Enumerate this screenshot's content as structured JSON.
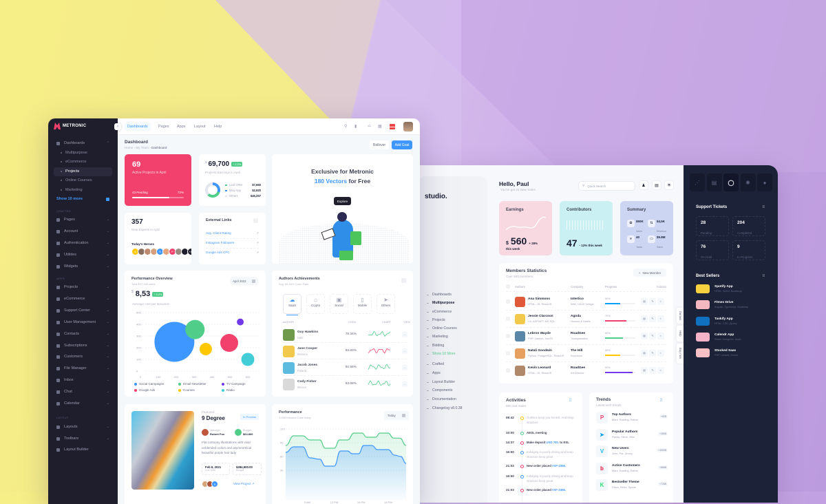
{
  "colors": {
    "primary": "#3e97ff",
    "danger": "#f1416c",
    "success": "#50cd89",
    "purple": "#7239ea",
    "warning": "#ffc700",
    "info": "#43ced7",
    "dark_sidebar": "#1e1e2d"
  },
  "metronic": {
    "logo": "METRONIC",
    "sidebar": [
      {
        "type": "item",
        "label": "Dashboards",
        "icon": "grid-icon",
        "open": true
      },
      {
        "type": "sub",
        "label": "Multipurpose"
      },
      {
        "type": "sub",
        "label": "eCommerce"
      },
      {
        "type": "sub",
        "label": "Projects",
        "active": true
      },
      {
        "type": "sub",
        "label": "Online Courses"
      },
      {
        "type": "sub",
        "label": "Marketing"
      },
      {
        "type": "more",
        "label": "Show 10 more"
      },
      {
        "type": "section",
        "label": "CRAFTED"
      },
      {
        "type": "item",
        "label": "Pages",
        "icon": "file-icon"
      },
      {
        "type": "item",
        "label": "Account",
        "icon": "user-icon"
      },
      {
        "type": "item",
        "label": "Authentication",
        "icon": "lock-icon"
      },
      {
        "type": "item",
        "label": "Utilities",
        "icon": "tools-icon"
      },
      {
        "type": "item",
        "label": "Widgets",
        "icon": "widgets-icon"
      },
      {
        "type": "section",
        "label": "APPS"
      },
      {
        "type": "item",
        "label": "Projects",
        "icon": "folder-icon"
      },
      {
        "type": "item",
        "label": "eCommerce",
        "icon": "cart-icon"
      },
      {
        "type": "item",
        "label": "Support Center",
        "icon": "lifebuoy-icon"
      },
      {
        "type": "item",
        "label": "User Management",
        "icon": "users-icon"
      },
      {
        "type": "item",
        "label": "Contacts",
        "icon": "contacts-icon"
      },
      {
        "type": "item",
        "label": "Subscriptions",
        "icon": "subscription-icon"
      },
      {
        "type": "item",
        "label": "Customers",
        "icon": "customer-icon"
      },
      {
        "type": "item",
        "label": "File Manager",
        "icon": "file-manager-icon"
      },
      {
        "type": "item",
        "label": "Inbox",
        "icon": "inbox-icon"
      },
      {
        "type": "item",
        "label": "Chat",
        "icon": "chat-icon"
      },
      {
        "type": "item",
        "label": "Calendar",
        "icon": "calendar-icon"
      },
      {
        "type": "section",
        "label": "LAYOUT"
      },
      {
        "type": "item",
        "label": "Layouts",
        "icon": "layout-icon"
      },
      {
        "type": "item",
        "label": "Toolbars",
        "icon": "toolbar-icon"
      },
      {
        "type": "item",
        "label": "Layout Builder",
        "icon": "builder-icon",
        "nochev": true
      }
    ],
    "topnav": [
      "Dashboards",
      "Pages",
      "Apps",
      "Layout",
      "Help"
    ],
    "header_icons": [
      "search-icon",
      "chart-icon",
      "basket-icon",
      "apps-icon",
      "us-flag-icon"
    ],
    "page": {
      "title": "Dashboard",
      "breadcrumb": [
        "Home",
        "My Team",
        "Dashboard"
      ],
      "rollover": "Rollover",
      "add_goal": "Add Goal"
    },
    "projects_card": {
      "value": "69",
      "label": "Active Projects in April",
      "pending": "43 Pending",
      "percent_label": "72%",
      "progress": 72
    },
    "earnings_card": {
      "currency": "$",
      "value": "69,700",
      "badge": "↑ 2.2%",
      "label": "Projects Earnings in April",
      "legend": [
        {
          "name": "Leaf CRM",
          "value": "$7,660",
          "color": "#50cd89"
        },
        {
          "name": "Mivy App",
          "value": "$2,820",
          "color": "#3e97ff"
        },
        {
          "name": "Others",
          "value": "$45,257",
          "color": "#e4e6ef"
        }
      ]
    },
    "experts_card": {
      "value": "357",
      "label": "New Experts in April",
      "heroes_label": "Today's Heroes",
      "heroes": [
        "A",
        "",
        "",
        "",
        "S",
        "",
        "P",
        "",
        ""
      ],
      "more": "+42"
    },
    "links_card": {
      "title": "External Links",
      "links": [
        "Avg. Client Rating",
        "Instagram Followers",
        "Google Ads CPC"
      ]
    },
    "banner": {
      "line1": "Exclusive for Metronic",
      "highlight": "180 Vectors",
      "line2_rest": "for Free",
      "button": "Explore"
    },
    "perf_overview": {
      "title": "Performance Overview",
      "subtitle": "Total $37,345 sales",
      "currency": "$",
      "value": "8,53",
      "badge": "↑ 3.2%",
      "label": "Average cost per iteraction",
      "period": "April 2022"
    },
    "authors": {
      "title": "Authors Achievements",
      "subtitle": "Avg. 69.34% Conv. Rate",
      "tabs": [
        {
          "label": "SaaS",
          "icon": "cloud-icon",
          "active": true
        },
        {
          "label": "Crypto",
          "icon": "bank-icon"
        },
        {
          "label": "Social",
          "icon": "social-icon"
        },
        {
          "label": "Mobile",
          "icon": "mobile-icon"
        },
        {
          "label": "Others",
          "icon": "paper-plane-icon"
        }
      ],
      "columns": [
        "AUTHOR",
        "CONV.",
        "CHART",
        "VIEW"
      ],
      "rows": [
        {
          "name": "Guy Hawkins",
          "country": "Haiti",
          "conv": "78.34%",
          "trend": "#50cd89"
        },
        {
          "name": "Jane Cooper",
          "country": "Monaco",
          "conv": "63.83%",
          "trend": "#f1416c"
        },
        {
          "name": "Jacob Jones",
          "country": "Poland",
          "conv": "92.56%",
          "trend": "#50cd89"
        },
        {
          "name": "Cody Fisher",
          "country": "Mexico",
          "conv": "63.08%",
          "trend": "#50cd89"
        }
      ]
    },
    "featured": {
      "tag": "Featured",
      "title": "9 Degree",
      "status": "In Process",
      "manager_label": "Manager",
      "manager": "Robert Fox",
      "budget_label": "Budget",
      "budget": "$64.800",
      "description": "Flat cartoony illustrations with vivid unblended colors and asymmetrical beautiful purple hair lady",
      "due": "Feb 6, 2021",
      "due_label": "Due Date",
      "total": "$284,900.00",
      "total_label": "Budget",
      "link": "View Project",
      "avatar_more": "S"
    },
    "performance": {
      "title": "Performance",
      "subtitle": "1,046 Inbound Calls today",
      "period": "Today"
    }
  },
  "chart_data": [
    {
      "type": "scatter",
      "title": "Performance Overview",
      "xlim": [
        0,
        600
      ],
      "ylim": [
        0,
        500
      ],
      "xticks": [
        "0",
        "100",
        "200",
        "300",
        "400",
        "500",
        "600"
      ],
      "yticks": [
        "0",
        "100",
        "200",
        "300",
        "400",
        "500"
      ],
      "grid": true,
      "legend": "bottom",
      "series": [
        {
          "name": "Social Campaigns",
          "x": 190,
          "y": 250,
          "z": 58,
          "color": "#3e97ff"
        },
        {
          "name": "Email Newsletter",
          "x": 305,
          "y": 355,
          "z": 28,
          "color": "#50cd89"
        },
        {
          "name": "TV Campaign",
          "x": 558,
          "y": 420,
          "z": 10,
          "color": "#7239ea"
        },
        {
          "name": "Google Ads",
          "x": 496,
          "y": 241,
          "z": 26,
          "color": "#f1416c"
        },
        {
          "name": "Courses",
          "x": 365,
          "y": 188,
          "z": 18,
          "color": "#ffc700"
        },
        {
          "name": "Radio",
          "x": 600,
          "y": 100,
          "z": 19,
          "color": "#43ced7"
        }
      ]
    },
    {
      "type": "area",
      "title": "Performance",
      "ylim": [
        0,
        120
      ],
      "yticks": [
        "30",
        "60",
        "90",
        "120"
      ],
      "xticks": [
        {
          "x": 9,
          "label": "9 AM"
        },
        {
          "x": 12,
          "label": "12 PM"
        },
        {
          "x": 15,
          "label": "15 PM"
        },
        {
          "x": 18,
          "label": "18 PM"
        }
      ],
      "grid": true,
      "series": [
        {
          "color": "#50cd89",
          "points": [
            [
              6.6,
              84
            ],
            [
              7.5,
              105
            ],
            [
              8.5,
              105
            ],
            [
              9.3,
              96
            ],
            [
              10.4,
              96
            ],
            [
              11,
              78
            ],
            [
              12,
              78
            ],
            [
              12.6,
              96
            ],
            [
              13.5,
              96
            ],
            [
              14.2,
              111
            ],
            [
              15.1,
              111
            ],
            [
              15.6,
              102
            ],
            [
              16.6,
              102
            ],
            [
              17.1,
              111
            ],
            [
              18,
              111
            ],
            [
              18.6,
              100
            ],
            [
              19.3,
              100
            ],
            [
              20,
              84
            ]
          ]
        },
        {
          "color": "#3e97ff",
          "points": [
            [
              6.6,
              69
            ],
            [
              7.5,
              81
            ],
            [
              8.5,
              81
            ],
            [
              9.3,
              57
            ],
            [
              10.4,
              54
            ],
            [
              11,
              39
            ],
            [
              12,
              39
            ],
            [
              12.7,
              72
            ],
            [
              13.5,
              72
            ],
            [
              14,
              66
            ],
            [
              14.7,
              66
            ],
            [
              15.3,
              84
            ],
            [
              16.2,
              84
            ],
            [
              16.8,
              75
            ],
            [
              18,
              75
            ],
            [
              18.7,
              63
            ],
            [
              19.4,
              60
            ],
            [
              20,
              45
            ]
          ]
        }
      ]
    }
  ],
  "studio": {
    "logo": "studio.",
    "nav": [
      {
        "label": "Dashboards"
      },
      {
        "label": "Multipurpose",
        "active": true
      },
      {
        "label": "eCommerce"
      },
      {
        "label": "Projects"
      },
      {
        "label": "Online Courses"
      },
      {
        "label": "Marketing"
      },
      {
        "label": "Bidding"
      },
      {
        "label": "Show 10 More",
        "more": true
      },
      {
        "label": "Crafted"
      },
      {
        "label": "Apps"
      },
      {
        "label": "Layout Builder"
      },
      {
        "label": "Components"
      },
      {
        "label": "Documentation"
      },
      {
        "label": "Changelog v8.0.38"
      }
    ],
    "greeting": "Hello, Paul",
    "greeting_sub": "You've got 24 New Sales",
    "search_placeholder": "Quick Search",
    "earnings": {
      "title": "Earnings",
      "currency": "$",
      "value": "560",
      "delta": "+ 28%",
      "period": "this week"
    },
    "contributors": {
      "title": "Contributors",
      "value": "47",
      "delta": "- 12% this week"
    },
    "summary": {
      "title": "Summary",
      "items": [
        {
          "value": "$50K",
          "label": "Sales"
        },
        {
          "value": "$4,5K",
          "label": "Revenue"
        },
        {
          "value": "40",
          "label": "Tasks"
        },
        {
          "value": "$5.8M",
          "label": "Sales"
        }
      ]
    },
    "members": {
      "title": "Members Statistics",
      "subtitle": "Over 500 members",
      "new_button": "New Member",
      "columns": [
        "Authors",
        "Company",
        "Progress",
        "Actions"
      ],
      "rows": [
        {
          "name": "Ana Simmons",
          "skills": "HTML, JS, ReactJS",
          "company": "Intertico",
          "sector": "Web, UI/UX Design",
          "progress": 50,
          "progress_label": "50%",
          "color": "#009ef7",
          "avatar": "#e05a3a"
        },
        {
          "name": "Jessie Clarcson",
          "skills": "C#, ASP.NET, MS SQL",
          "company": "Agoda",
          "sector": "Houses & Hotels",
          "progress": 70,
          "progress_label": "70%",
          "color": "#f1416c",
          "avatar": "#f2c94c"
        },
        {
          "name": "Lebron Wayde",
          "skills": "PHP, Laravel, VueJS",
          "company": "RoadGee",
          "sector": "Transportation",
          "progress": 60,
          "progress_label": "60%",
          "color": "#50cd89",
          "avatar": "#5a87a8"
        },
        {
          "name": "Natali Goodwin",
          "skills": "Python, PostgreSQL, ReactJS",
          "company": "The Hill",
          "sector": "Insurance",
          "progress": 50,
          "progress_label": "50%",
          "color": "#ffc700",
          "avatar": "#e8a060"
        },
        {
          "name": "Kevin Leonard",
          "skills": "HTML, JS, ReactJS",
          "company": "RoadGee",
          "sector": "Art Director",
          "progress": 90,
          "progress_label": "90%",
          "color": "#7239ea",
          "avatar": "#b0896a"
        }
      ]
    },
    "activities": {
      "title": "Activities",
      "subtitle": "890,344 Sales",
      "items": [
        {
          "time": "08:42",
          "text": "Outlines keep you honest. And keep structure",
          "color": "#ffc700",
          "muted": true
        },
        {
          "time": "10:00",
          "text": "AEOL meeting",
          "color": "#50cd89"
        },
        {
          "time": "14:37",
          "text": "Make deposit ",
          "link": "USD 700.",
          "after": " to ESL",
          "color": "#f1416c"
        },
        {
          "time": "16:50",
          "text": "Indulging in poorly driving and keep structure keep great",
          "color": "#3e97ff",
          "muted": true
        },
        {
          "time": "21:03",
          "text": "New order placed ",
          "link": "#XF-2356.",
          "color": "#f1416c"
        },
        {
          "time": "16:50",
          "text": "Indulging in poorly driving and keep structure keep great",
          "color": "#3e97ff",
          "muted": true
        },
        {
          "time": "21:03",
          "text": "New order placed ",
          "link": "#XF-2356.",
          "color": "#f1416c"
        }
      ]
    },
    "trends": {
      "title": "Trends",
      "subtitle": "Latest tech trends",
      "items": [
        {
          "title": "Top Authors",
          "sub": "Mark, Rowling, Esther",
          "badge": "+82$",
          "icon": "pinterest-icon",
          "color": "#f1416c",
          "glyph": "P"
        },
        {
          "title": "Popular Authors",
          "sub": "Randy, Steve, Mike",
          "badge": "+280$",
          "icon": "telegram-icon",
          "color": "#009ef7",
          "glyph": "➤"
        },
        {
          "title": "New Users",
          "sub": "John, Pat, Jimmy",
          "badge": "+4500$",
          "icon": "vimeo-icon",
          "color": "#1ab7ea",
          "glyph": "V"
        },
        {
          "title": "Active Customers",
          "sub": "Mark, Rowling, Esther",
          "badge": "+686$",
          "icon": "bebo-icon",
          "color": "#e3173e",
          "glyph": "b"
        },
        {
          "title": "Bestseller Theme",
          "sub": "Disco, Retro, Sports",
          "badge": "+726$",
          "icon": "kickstarter-icon",
          "color": "#2bde73",
          "glyph": "K"
        }
      ]
    },
    "side_tabs": [
      "Demos",
      "Help",
      "Buy now"
    ],
    "dark_panel": {
      "icons": [
        "share-icon",
        "document-icon",
        "chart-ring-icon",
        "gear-icon",
        "chat-bubble-icon"
      ],
      "tickets_title": "Support Tickets",
      "tickets": [
        {
          "value": "28",
          "label": "Pending"
        },
        {
          "value": "204",
          "label": "Completed"
        },
        {
          "value": "76",
          "label": "On Hold"
        },
        {
          "value": "9",
          "label": "In Progress"
        }
      ],
      "sellers_title": "Best Sellers",
      "sellers": [
        {
          "name": "Spotify App",
          "tech": "HTML, SASS, Bootstrap",
          "color": "#f7d23e"
        },
        {
          "name": "Fitnes Drive",
          "tech": "Angular, Typescript, Bootstrap",
          "color": "#f6b8c0"
        },
        {
          "name": "Taskify App",
          "tech": "HTML, CSS, jQuery",
          "color": "#1071c0"
        },
        {
          "name": "Calendr App",
          "tech": "React, MongoDb, Node",
          "color": "#f4b3c8"
        },
        {
          "name": "Stocked Saas",
          "tech": "PHP, Laravel, Oracle",
          "color": "#f7c0c4"
        }
      ]
    }
  }
}
